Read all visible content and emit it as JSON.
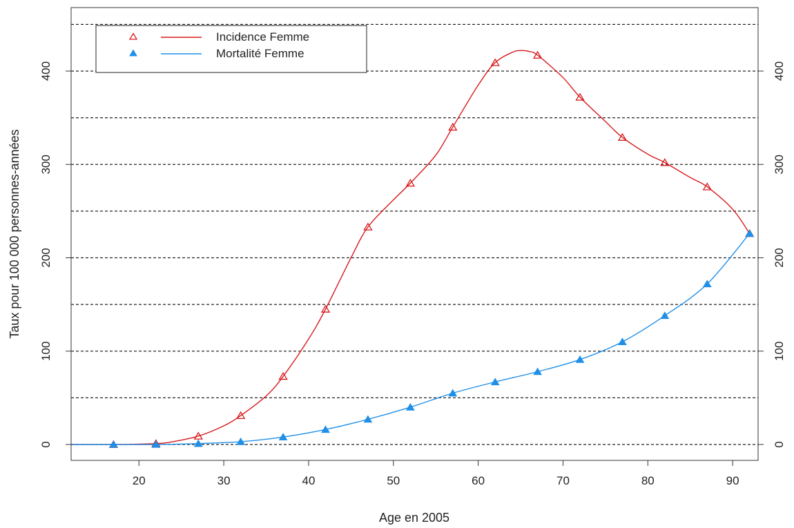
{
  "chart_data": {
    "type": "line",
    "title": "",
    "xlabel": "Age en 2005",
    "ylabel": "Taux pour 100 000 personnes-années",
    "xlim": [
      12,
      93
    ],
    "ylim": [
      -17,
      468
    ],
    "x_ticks": [
      20,
      30,
      40,
      50,
      60,
      70,
      80,
      90
    ],
    "y_ticks": [
      0,
      100,
      200,
      300,
      400
    ],
    "y_ticks_right": [
      0,
      100,
      200,
      300,
      400
    ],
    "gridlines_y": [
      0,
      50,
      100,
      150,
      200,
      250,
      300,
      350,
      400,
      450
    ],
    "grid": "horizontal-dashed",
    "legend_position": "top-left",
    "series": [
      {
        "name": "Incidence Femme",
        "color": "#d7191c",
        "marker": "open-triangle",
        "x": [
          17,
          22,
          27,
          32,
          37,
          42,
          47,
          52,
          57,
          62,
          67,
          72,
          77,
          82,
          87,
          92
        ],
        "y": [
          0,
          1,
          9,
          31,
          73,
          145,
          233,
          280,
          340,
          409,
          417,
          372,
          329,
          302,
          276,
          226
        ],
        "curve_x": [
          12,
          17,
          22,
          24,
          27,
          30,
          32,
          35,
          37,
          40,
          42,
          45,
          47,
          50,
          52,
          55,
          57,
          60,
          62,
          64,
          65,
          66,
          67,
          70,
          72,
          75,
          77,
          80,
          82,
          85,
          87,
          90,
          92
        ],
        "curve_y": [
          0,
          0,
          1,
          3,
          9,
          20,
          31,
          52,
          73,
          113,
          145,
          200,
          233,
          262,
          280,
          310,
          340,
          385,
          409,
          420,
          422,
          421,
          417,
          393,
          372,
          346,
          329,
          311,
          302,
          286,
          276,
          252,
          226
        ]
      },
      {
        "name": "Mortalité Femme",
        "color": "#1f8fe8",
        "marker": "filled-triangle",
        "x": [
          17,
          22,
          27,
          32,
          37,
          42,
          47,
          52,
          57,
          62,
          67,
          72,
          77,
          82,
          87,
          92
        ],
        "y": [
          0,
          0,
          1,
          3,
          8,
          16,
          27,
          40,
          55,
          67,
          78,
          91,
          110,
          138,
          172,
          226
        ],
        "curve_x": [
          12,
          17,
          22,
          27,
          32,
          37,
          42,
          47,
          52,
          57,
          62,
          67,
          72,
          77,
          82,
          87,
          92
        ],
        "curve_y": [
          0,
          0,
          0,
          1,
          3,
          8,
          16,
          27,
          40,
          55,
          67,
          78,
          91,
          110,
          138,
          172,
          226
        ]
      }
    ]
  }
}
